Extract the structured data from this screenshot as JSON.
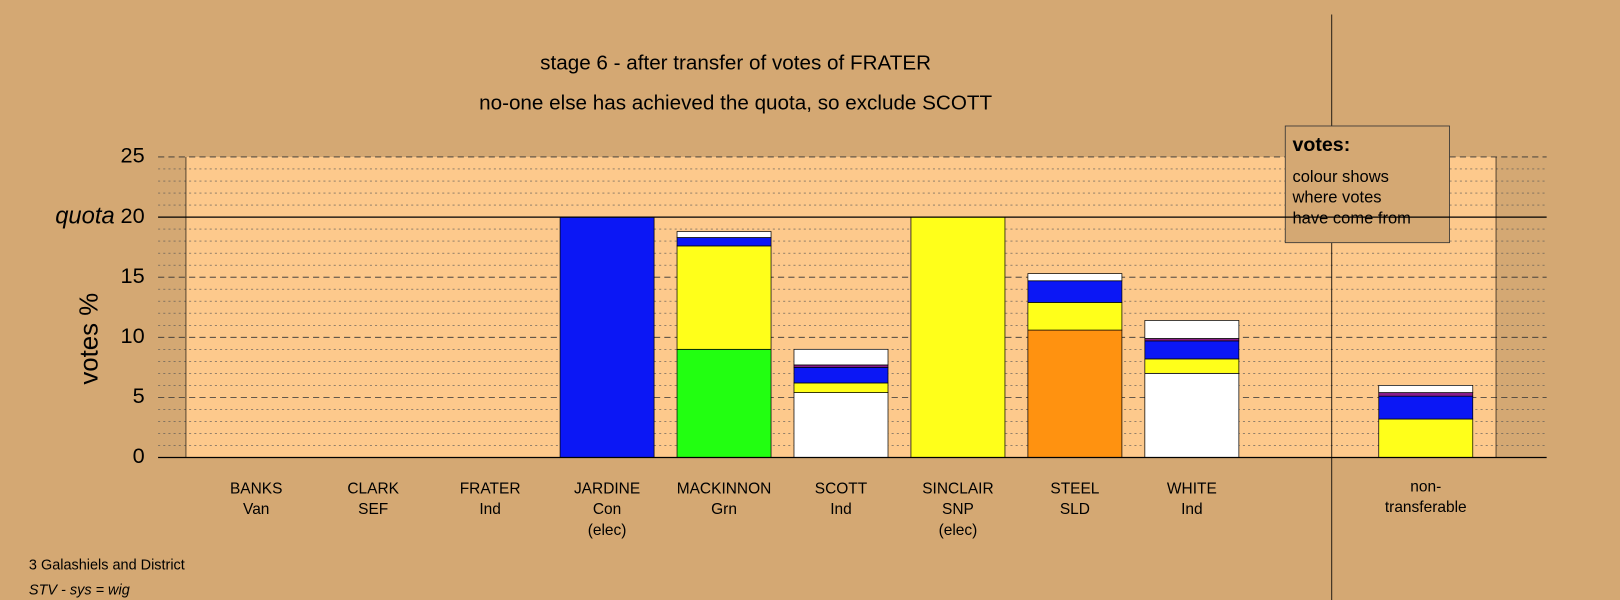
{
  "chart_data": {
    "type": "bar",
    "stacked": true,
    "title": "stage 6 - after transfer of votes of FRATER",
    "subtitle": "no-one else has achieved the quota, so exclude SCOTT",
    "y_label": "votes %",
    "categories": [
      [
        "BANKS",
        "Van"
      ],
      [
        "CLARK",
        "SEF"
      ],
      [
        "FRATER",
        "Ind"
      ],
      [
        "JARDINE",
        "Con",
        "(elec)"
      ],
      [
        "MACKINNON",
        "Grn"
      ],
      [
        "SCOTT",
        "Ind"
      ],
      [
        "SINCLAIR",
        "SNP",
        "(elec)"
      ],
      [
        "STEEL",
        "SLD"
      ],
      [
        "WHITE",
        "Ind"
      ],
      [
        "non-",
        "transferable"
      ]
    ],
    "series": [
      {
        "color": "#ffffff",
        "values": [
          0,
          0,
          0,
          0,
          0,
          5.4,
          0,
          0,
          7.0,
          0
        ]
      },
      {
        "color": "#22ff11",
        "values": [
          0,
          0,
          0,
          0,
          9.0,
          0,
          0,
          0,
          0,
          0
        ]
      },
      {
        "color": "#ff9210",
        "values": [
          0,
          0,
          0,
          0,
          0,
          0,
          0,
          10.6,
          0,
          0
        ]
      },
      {
        "color": "#ffff1a",
        "values": [
          0,
          0,
          0,
          0,
          8.6,
          0.8,
          20,
          2.3,
          1.2,
          3.2
        ]
      },
      {
        "color": "#0b17f5",
        "values": [
          0,
          0,
          0,
          20,
          0.7,
          1.3,
          0,
          1.8,
          1.5,
          1.9
        ]
      },
      {
        "color": "#8a1c8a",
        "values": [
          0,
          0,
          0,
          0,
          0,
          0.2,
          0,
          0,
          0.2,
          0.3
        ]
      },
      {
        "color": "#ffffff",
        "values": [
          0,
          0,
          0,
          0,
          0.5,
          1.3,
          0,
          0.6,
          1.5,
          0.6
        ]
      }
    ],
    "ylim": [
      0,
      25
    ],
    "yticks": [
      0,
      5,
      10,
      15,
      20,
      25
    ],
    "minor_yticks": [
      1,
      2,
      3,
      4,
      6,
      7,
      8,
      9,
      11,
      12,
      13,
      14,
      16,
      17,
      18,
      19,
      21,
      22,
      23,
      24
    ],
    "quota": {
      "value": 20,
      "label": "quota"
    },
    "grid": true,
    "legend": {
      "title": "votes:",
      "lines": [
        "colour shows",
        "where votes",
        "have come from"
      ]
    },
    "footnote": [
      "3 Galashiels and District",
      "STV - sys = wig"
    ]
  }
}
